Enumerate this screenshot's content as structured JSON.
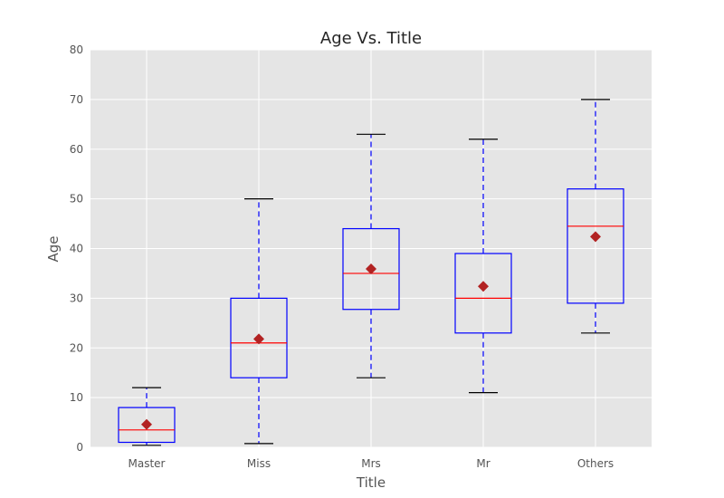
{
  "chart_data": {
    "type": "box",
    "title": "Age Vs. Title",
    "xlabel": "Title",
    "ylabel": "Age",
    "ylim": [
      0,
      80
    ],
    "yticks": [
      0,
      10,
      20,
      30,
      40,
      50,
      60,
      70,
      80
    ],
    "grid": true,
    "categories": [
      "Master",
      "Miss",
      "Mrs",
      "Mr",
      "Others"
    ],
    "boxes": [
      {
        "category": "Master",
        "whisker_low": 0.4,
        "q1": 1,
        "median": 3.5,
        "q3": 8,
        "whisker_high": 12,
        "mean": 4.6
      },
      {
        "category": "Miss",
        "whisker_low": 0.75,
        "q1": 14,
        "median": 21,
        "q3": 30,
        "whisker_high": 50,
        "mean": 21.8
      },
      {
        "category": "Mrs",
        "whisker_low": 14,
        "q1": 27.75,
        "median": 35,
        "q3": 44,
        "whisker_high": 63,
        "mean": 35.9
      },
      {
        "category": "Mr",
        "whisker_low": 11,
        "q1": 23,
        "median": 30,
        "q3": 39,
        "whisker_high": 62,
        "mean": 32.4
      },
      {
        "category": "Others",
        "whisker_low": 23,
        "q1": 29,
        "median": 44.5,
        "q3": 52,
        "whisker_high": 70,
        "mean": 42.4
      }
    ],
    "colors": {
      "background": "#e5e5e5",
      "grid": "#ffffff",
      "box": "#0000ff",
      "whisker": "#0000ff",
      "cap": "#000000",
      "median": "#ff0000",
      "mean": "#b22222"
    }
  }
}
